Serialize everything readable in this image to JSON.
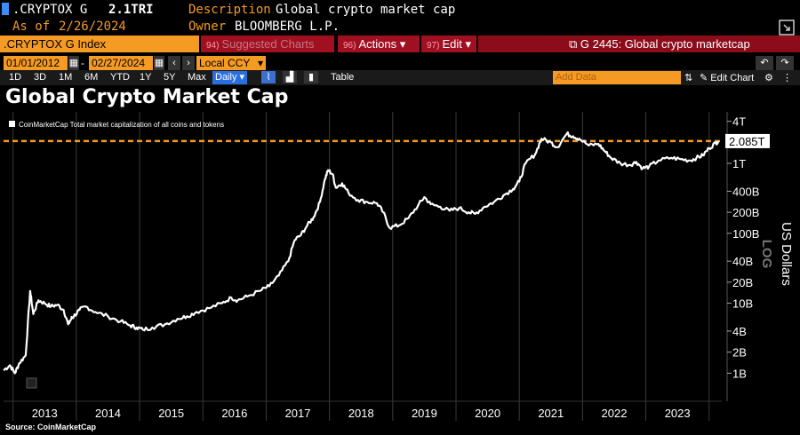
{
  "header": {
    "ticker": ".CRYPTOX G",
    "last_value": "2.1TRI",
    "description_label": "Description",
    "description_value": "Global crypto market cap",
    "asof_label": "As of",
    "asof_value": "2/26/2024",
    "owner_label": "Owner",
    "owner_value": "BLOOMBERG L.P."
  },
  "toolbar": {
    "index_label": ".CRYPTOX G Index",
    "suggested_num": "94)",
    "suggested_label": "Suggested Charts",
    "actions_num": "96)",
    "actions_label": "Actions",
    "edit_num": "97)",
    "edit_label": "Edit",
    "chart_ref": "G 2445: Global crypto marketcap"
  },
  "controls": {
    "start_date": "01/01/2012",
    "end_date": "02/27/2024",
    "date_sep": "-",
    "currency": "Local CCY",
    "periods": [
      "1D",
      "3D",
      "1M",
      "6M",
      "YTD",
      "1Y",
      "5Y",
      "Max"
    ],
    "frequency": "Daily",
    "table_label": "Table",
    "add_data_placeholder": "Add Data",
    "edit_chart_label": "Edit Chart"
  },
  "colors": {
    "accent_orange": "#f59a23",
    "line": "#ffffff",
    "background": "#000000",
    "brand_red": "#a01020"
  },
  "chart_data": {
    "type": "line",
    "title": "Global Crypto Market Cap",
    "legend": [
      "CoinMarketCap Total market capitalization of all coins and tokens"
    ],
    "legend_position": "top-left",
    "ylabel": "US Dollars",
    "y_scale": "log",
    "y_scale_badge": "LOG",
    "ylim_billions": [
      0.8,
      5000
    ],
    "y_ticks": [
      {
        "label": "4T",
        "value": 4000
      },
      {
        "label": "1T",
        "value": 1000
      },
      {
        "label": "400B",
        "value": 400
      },
      {
        "label": "200B",
        "value": 200
      },
      {
        "label": "100B",
        "value": 100
      },
      {
        "label": "40B",
        "value": 40
      },
      {
        "label": "20B",
        "value": 20
      },
      {
        "label": "10B",
        "value": 10
      },
      {
        "label": "4B",
        "value": 4
      },
      {
        "label": "2B",
        "value": 2
      },
      {
        "label": "1B",
        "value": 1
      }
    ],
    "x_ticks": [
      "2013",
      "2014",
      "2015",
      "2016",
      "2017",
      "2018",
      "2019",
      "2020",
      "2021",
      "2022",
      "2023"
    ],
    "xlim": [
      2012.85,
      2024.2
    ],
    "last_value_label": "2.085T",
    "last_value": 2085,
    "series": [
      {
        "x": [
          2012.85,
          2012.95,
          2013.03,
          2013.1,
          2013.2,
          2013.27,
          2013.32,
          2013.4,
          2013.5,
          2013.6,
          2013.7,
          2013.8,
          2013.87,
          2013.92,
          2013.96,
          2014.05,
          2014.15,
          2014.3,
          2014.5,
          2014.7,
          2014.85,
          2014.95,
          2015.05,
          2015.2,
          2015.4,
          2015.6,
          2015.75,
          2015.9,
          2016.1,
          2016.3,
          2016.45,
          2016.55,
          2016.7,
          2016.9,
          2017.05,
          2017.2,
          2017.35,
          2017.45,
          2017.55,
          2017.65,
          2017.75,
          2017.85,
          2017.93,
          2017.98,
          2018.05,
          2018.1,
          2018.2,
          2018.3,
          2018.45,
          2018.6,
          2018.75,
          2018.85,
          2018.95,
          2019.1,
          2019.25,
          2019.4,
          2019.5,
          2019.6,
          2019.75,
          2019.9,
          2020.05,
          2020.2,
          2020.3,
          2020.45,
          2020.6,
          2020.75,
          2020.9,
          2021.0,
          2021.1,
          2021.25,
          2021.35,
          2021.5,
          2021.6,
          2021.75,
          2021.85,
          2021.95,
          2022.1,
          2022.25,
          2022.35,
          2022.45,
          2022.6,
          2022.75,
          2022.85,
          2022.95,
          2023.05,
          2023.2,
          2023.4,
          2023.55,
          2023.7,
          2023.8,
          2023.9,
          2024.0,
          2024.1,
          2024.15
        ],
        "values": [
          1.1,
          1.3,
          1.0,
          1.4,
          1.8,
          15,
          7,
          11,
          10,
          9,
          9.5,
          8,
          5,
          6,
          6.5,
          8,
          9,
          7.5,
          6.5,
          5.5,
          4.8,
          4.5,
          4.2,
          4.5,
          5,
          6,
          6.5,
          7.5,
          8.5,
          10,
          12,
          11,
          12.5,
          15,
          17.5,
          25,
          40,
          80,
          95,
          130,
          170,
          280,
          600,
          800,
          700,
          450,
          520,
          380,
          300,
          280,
          270,
          200,
          120,
          130,
          165,
          250,
          330,
          260,
          240,
          210,
          230,
          200,
          190,
          240,
          280,
          350,
          430,
          550,
          1000,
          1350,
          2250,
          2000,
          1700,
          2650,
          2450,
          2250,
          1800,
          1900,
          1500,
          1200,
          1000,
          950,
          1050,
          850,
          900,
          1100,
          1200,
          1150,
          1100,
          1200,
          1300,
          1650,
          1950,
          2085
        ]
      }
    ],
    "source": "Source: CoinMarketCap"
  }
}
